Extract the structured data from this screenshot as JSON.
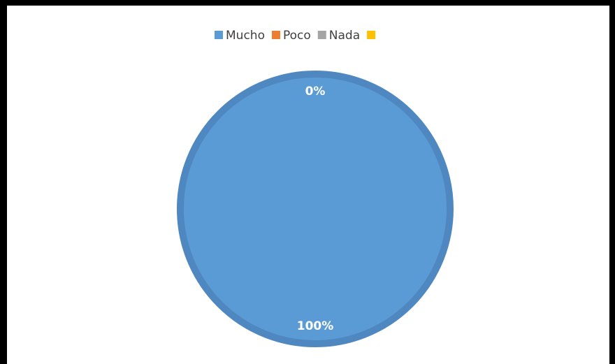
{
  "chart_data": {
    "type": "pie",
    "categories": [
      "Mucho",
      "Poco",
      "Nada",
      null
    ],
    "values": [
      100,
      0,
      0,
      0
    ],
    "value_labels": [
      "100%",
      "0%",
      null,
      null
    ],
    "colors": [
      "#5b9bd5",
      "#ed7d31",
      "#a5a5a5",
      "#ffc000"
    ],
    "legend": "top"
  }
}
